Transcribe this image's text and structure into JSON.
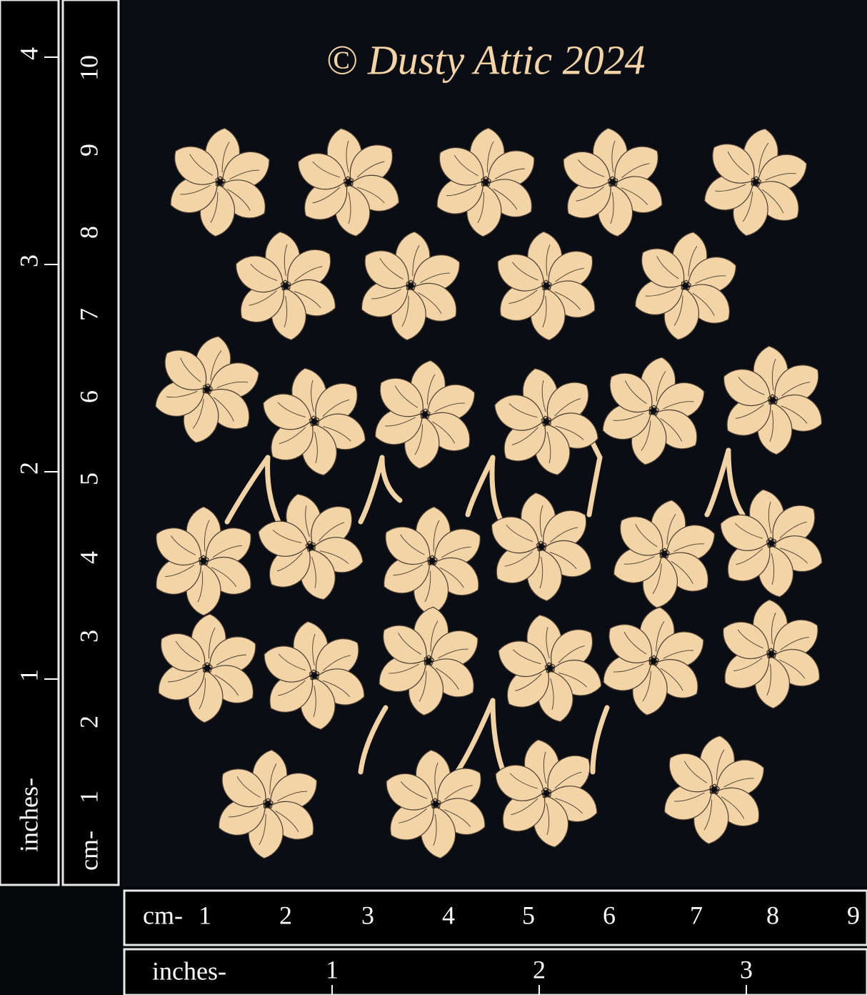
{
  "title": "© Dusty Attic 2024",
  "ruler_vertical": {
    "inches_label": "inches-",
    "inches": [
      "1",
      "2",
      "3",
      "4"
    ],
    "cm_label": "cm-",
    "cm": [
      "1",
      "2",
      "3",
      "4",
      "5",
      "6",
      "7",
      "8",
      "9",
      "10"
    ]
  },
  "ruler_horizontal": {
    "cm_label": "cm-",
    "cm": [
      "1",
      "2",
      "3",
      "4",
      "5",
      "6",
      "7",
      "8",
      "9"
    ],
    "inches_label": "inches-",
    "inches": [
      "1",
      "2",
      "3"
    ]
  }
}
